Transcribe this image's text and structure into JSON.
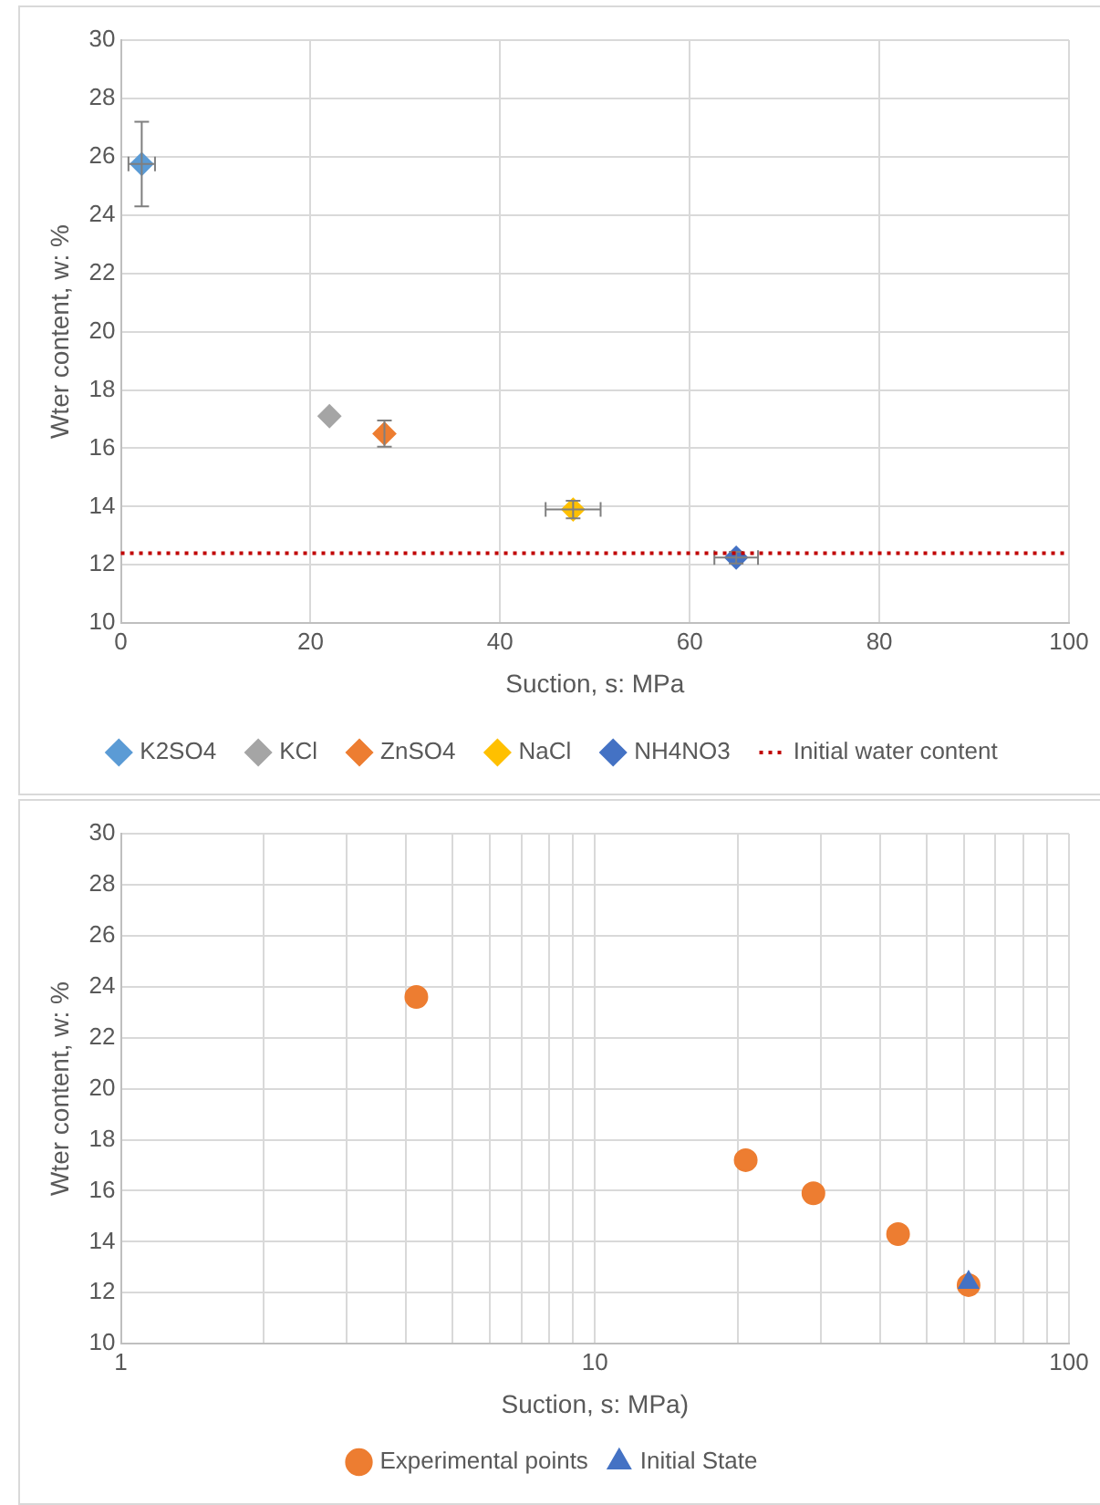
{
  "chart_data": [
    {
      "type": "scatter",
      "xlabel": "Suction, s: MPa",
      "ylabel": "Wter content, w: %",
      "xlim": [
        0,
        100
      ],
      "xticks": [
        0,
        20,
        40,
        60,
        80,
        100
      ],
      "ylim": [
        10,
        30
      ],
      "yticks": [
        10,
        12,
        14,
        16,
        18,
        20,
        22,
        24,
        26,
        28,
        30
      ],
      "grid": true,
      "legend": "bottom",
      "marker": "diamond",
      "series": [
        {
          "name": "K2SO4",
          "color": "#5b9bd5",
          "x": [
            2.2
          ],
          "values": [
            25.75
          ],
          "errors": [
            1.45
          ],
          "xerrors": [
            1.4
          ]
        },
        {
          "name": "KCl",
          "color": "#a5a5a5",
          "x": [
            22
          ],
          "values": [
            17.1
          ]
        },
        {
          "name": "ZnSO4",
          "color": "#ed7d31",
          "x": [
            27.8
          ],
          "values": [
            16.5
          ],
          "errors": [
            0.45
          ]
        },
        {
          "name": "NaCl",
          "color": "#ffc000",
          "x": [
            47.7
          ],
          "values": [
            13.9
          ],
          "errors": [
            0.3
          ],
          "xerrors": [
            2.9
          ]
        },
        {
          "name": "NH4NO3",
          "color": "#4472c4",
          "x": [
            64.9
          ],
          "values": [
            12.25
          ],
          "errors": [
            0.2
          ],
          "xerrors": [
            2.3
          ]
        }
      ],
      "ref_lines": [
        {
          "axis": "y",
          "value": 12.4,
          "label": "Initial water content",
          "color": "#c00000",
          "line_style": "dotted"
        }
      ]
    },
    {
      "type": "scatter",
      "xlabel": "Suction, s: MPa)",
      "ylabel": "Wter content, w: %",
      "log": "x",
      "xlim": [
        1,
        100
      ],
      "xticks": [
        1,
        {
          "value": 2,
          "label": null
        },
        {
          "value": 3,
          "label": null
        },
        {
          "value": 4,
          "label": null
        },
        {
          "value": 5,
          "label": null
        },
        {
          "value": 6,
          "label": null
        },
        {
          "value": 7,
          "label": null
        },
        {
          "value": 8,
          "label": null
        },
        {
          "value": 9,
          "label": null
        },
        10,
        {
          "value": 20,
          "label": null
        },
        {
          "value": 30,
          "label": null
        },
        {
          "value": 40,
          "label": null
        },
        {
          "value": 50,
          "label": null
        },
        {
          "value": 60,
          "label": null
        },
        {
          "value": 70,
          "label": null
        },
        {
          "value": 80,
          "label": null
        },
        {
          "value": 90,
          "label": null
        },
        100
      ],
      "ylim": [
        10,
        30
      ],
      "yticks": [
        10,
        12,
        14,
        16,
        18,
        20,
        22,
        24,
        26,
        28,
        30
      ],
      "grid": true,
      "legend": "bottom",
      "series": [
        {
          "name": "Experimental points",
          "color": "#ed7d31",
          "marker": "circle",
          "x": [
            4.2,
            20.8,
            28.9,
            43.6,
            61.4
          ],
          "values": [
            23.6,
            17.2,
            15.9,
            14.3,
            12.3
          ]
        },
        {
          "name": "Initial State",
          "color": "#4472c4",
          "marker": "triangle",
          "x": [
            61.4
          ],
          "values": [
            12.4
          ]
        }
      ]
    }
  ]
}
